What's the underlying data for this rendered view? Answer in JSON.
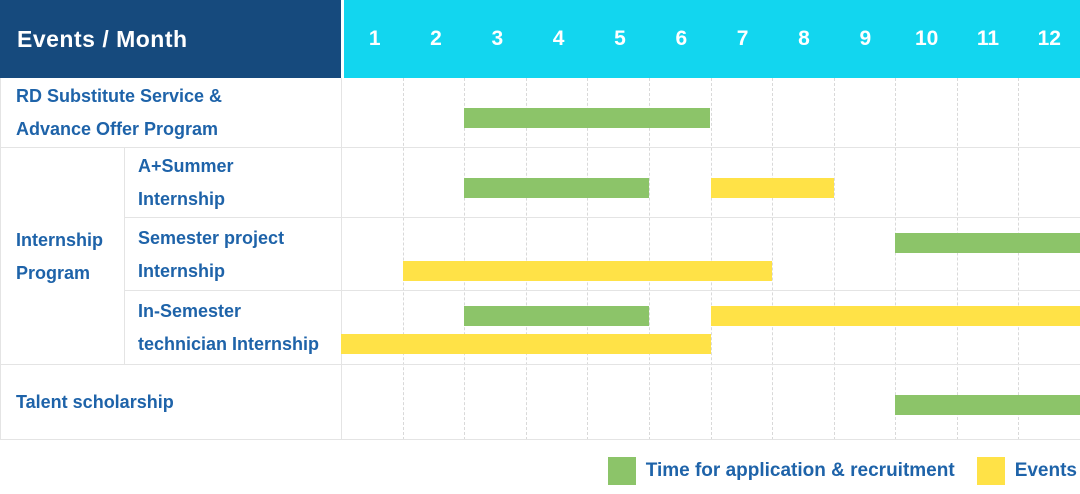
{
  "header": {
    "label": "Events / Month",
    "months": [
      "1",
      "2",
      "3",
      "4",
      "5",
      "6",
      "7",
      "8",
      "9",
      "10",
      "11",
      "12"
    ]
  },
  "colors": {
    "header_bg": "#164a7d",
    "months_bg": "#12d6ef",
    "text_blue": "#1e63a9",
    "application_green": "#8cc469",
    "events_yellow": "#ffe247",
    "grid_dash": "#d9d9d9",
    "row_line": "#e4e4e4"
  },
  "chart_data": {
    "type": "bar",
    "subtype": "gantt-schedule",
    "title": "Events / Month",
    "x_axis": {
      "label": "Month",
      "ticks": [
        "1",
        "2",
        "3",
        "4",
        "5",
        "6",
        "7",
        "8",
        "9",
        "10",
        "11",
        "12"
      ],
      "range": [
        1,
        12
      ]
    },
    "grid": true,
    "legend_position": "bottom-right",
    "series_legend": [
      {
        "name": "Time for application & recruitment",
        "key": "application",
        "color": "#8cc469"
      },
      {
        "name": "Events",
        "key": "events",
        "color": "#ffe247"
      }
    ],
    "rows": [
      {
        "group": "",
        "label": "RD Substitute Service & Advance Offer Program",
        "label_lines": [
          "RD Substitute Service &",
          "Advance Offer Program"
        ],
        "lines": [
          [
            {
              "series": "application",
              "start_month": 3,
              "end_month": 6
            }
          ]
        ]
      },
      {
        "group": "Internship Program",
        "label": "A+Summer Internship",
        "label_lines": [
          "A+Summer",
          "Internship"
        ],
        "lines": [
          [
            {
              "series": "application",
              "start_month": 3,
              "end_month": 5
            },
            {
              "series": "events",
              "start_month": 7,
              "end_month": 8
            }
          ]
        ]
      },
      {
        "group": "Internship Program",
        "label": "Semester project Internship",
        "label_lines": [
          "Semester project",
          "Internship"
        ],
        "lines": [
          [
            {
              "series": "application",
              "start_month": 10,
              "end_month": 12
            }
          ],
          [
            {
              "series": "events",
              "start_month": 2,
              "end_month": 7
            }
          ]
        ]
      },
      {
        "group": "Internship Program",
        "label": "In-Semester technician Internship",
        "label_lines": [
          "In-Semester",
          "technician Internship"
        ],
        "lines": [
          [
            {
              "series": "application",
              "start_month": 3,
              "end_month": 5
            },
            {
              "series": "events",
              "start_month": 7,
              "end_month": 12
            }
          ],
          [
            {
              "series": "events",
              "start_month": 1,
              "end_month": 6
            }
          ]
        ]
      },
      {
        "group": "",
        "label": "Talent scholarship",
        "label_lines": [
          "Talent scholarship"
        ],
        "lines": [
          [
            {
              "series": "application",
              "start_month": 10,
              "end_month": 12
            }
          ]
        ]
      }
    ],
    "group_label_lines": [
      "Internship",
      "Program"
    ]
  },
  "legend": {
    "items": [
      {
        "key": "application",
        "label": "Time for application & recruitment"
      },
      {
        "key": "events",
        "label": "Events"
      }
    ]
  }
}
